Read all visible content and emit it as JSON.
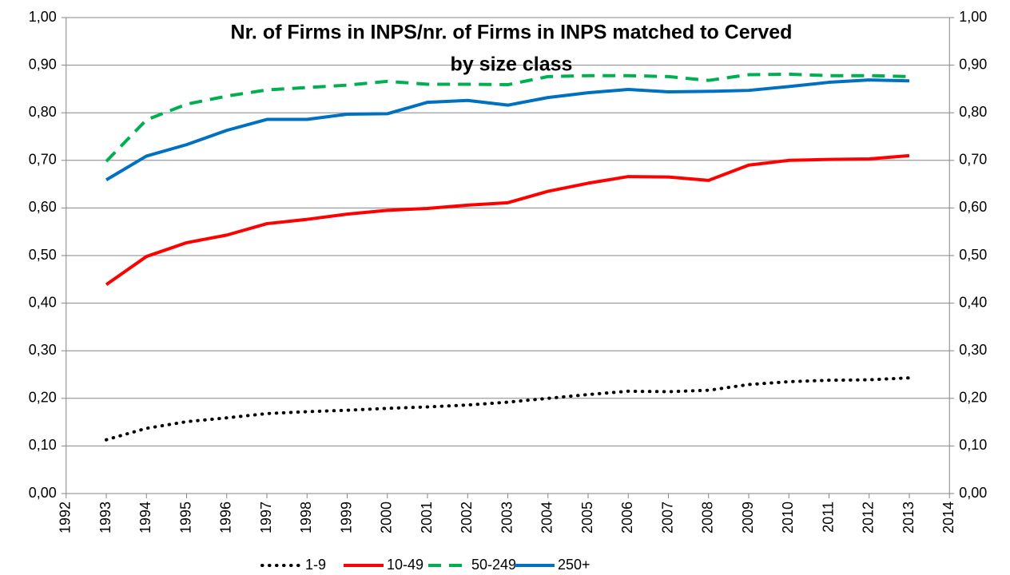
{
  "chart_data": {
    "type": "line",
    "title": [
      "Nr. of Firms in INPS/nr. of Firms in INPS matched to Cerved",
      "by size class"
    ],
    "x": [
      1993,
      1994,
      1995,
      1996,
      1997,
      1998,
      1999,
      2000,
      2001,
      2002,
      2003,
      2004,
      2005,
      2006,
      2007,
      2008,
      2009,
      2010,
      2011,
      2012,
      2013
    ],
    "series": [
      {
        "name": "1-9",
        "color": "#000000",
        "style": "dotted",
        "values": [
          0.113,
          0.137,
          0.151,
          0.159,
          0.168,
          0.172,
          0.175,
          0.179,
          0.182,
          0.186,
          0.192,
          0.2,
          0.208,
          0.215,
          0.214,
          0.217,
          0.229,
          0.235,
          0.238,
          0.239,
          0.243
        ]
      },
      {
        "name": "10-49",
        "color": "#ff0000",
        "style": "solid",
        "values": [
          0.439,
          0.498,
          0.527,
          0.543,
          0.567,
          0.576,
          0.587,
          0.595,
          0.599,
          0.606,
          0.611,
          0.635,
          0.652,
          0.666,
          0.665,
          0.658,
          0.69,
          0.7,
          0.702,
          0.703,
          0.71
        ]
      },
      {
        "name": "50-249",
        "color": "#00b050",
        "style": "dashed",
        "values": [
          0.698,
          0.785,
          0.818,
          0.835,
          0.848,
          0.853,
          0.858,
          0.866,
          0.86,
          0.86,
          0.859,
          0.876,
          0.878,
          0.878,
          0.876,
          0.868,
          0.88,
          0.881,
          0.878,
          0.878,
          0.876
        ]
      },
      {
        "name": "250+",
        "color": "#0070c0",
        "style": "solid",
        "values": [
          0.659,
          0.709,
          0.733,
          0.763,
          0.786,
          0.786,
          0.797,
          0.798,
          0.822,
          0.826,
          0.816,
          0.832,
          0.842,
          0.849,
          0.844,
          0.845,
          0.847,
          0.855,
          0.864,
          0.869,
          0.867
        ]
      }
    ],
    "xlim": [
      1992,
      2014
    ],
    "xticks": [
      1992,
      1993,
      1994,
      1995,
      1996,
      1997,
      1998,
      1999,
      2000,
      2001,
      2002,
      2003,
      2004,
      2005,
      2006,
      2007,
      2008,
      2009,
      2010,
      2011,
      2012,
      2013,
      2014
    ],
    "ylim": [
      0,
      1
    ],
    "yticks": [
      {
        "value": 0,
        "label": "0,00"
      },
      {
        "value": 0.1,
        "label": "0,10"
      },
      {
        "value": 0.2,
        "label": "0,20"
      },
      {
        "value": 0.3,
        "label": "0,30"
      },
      {
        "value": 0.4,
        "label": "0,40"
      },
      {
        "value": 0.5,
        "label": "0,50"
      },
      {
        "value": 0.6,
        "label": "0,60"
      },
      {
        "value": 0.7,
        "label": "0,70"
      },
      {
        "value": 0.8,
        "label": "0,80"
      },
      {
        "value": 0.9,
        "label": "0,90"
      },
      {
        "value": 1,
        "label": "1,00"
      }
    ],
    "y2lim": [
      0,
      1
    ],
    "y2ticks": [
      {
        "value": 0,
        "label": "0,00"
      },
      {
        "value": 0.1,
        "label": "0,10"
      },
      {
        "value": 0.2,
        "label": "0,20"
      },
      {
        "value": 0.3,
        "label": "0,30"
      },
      {
        "value": 0.4,
        "label": "0,40"
      },
      {
        "value": 0.5,
        "label": "0,50"
      },
      {
        "value": 0.6,
        "label": "0,60"
      },
      {
        "value": 0.7,
        "label": "0,70"
      },
      {
        "value": 0.8,
        "label": "0,80"
      },
      {
        "value": 0.9,
        "label": "0,90"
      },
      {
        "value": 1,
        "label": "1,00"
      }
    ],
    "grid": true,
    "legend": "bottom"
  }
}
